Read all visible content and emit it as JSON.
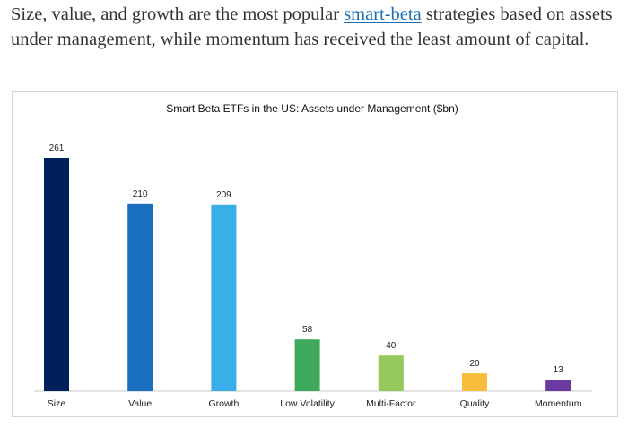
{
  "article": {
    "text_before": "Size, value, and growth are the most popular ",
    "link_text": "smart-beta",
    "text_after": " strategies based on assets under management, while momentum has received the least amount of capital."
  },
  "chart_data": {
    "type": "bar",
    "title": "Smart Beta ETFs in the US: Assets under Management ($bn)",
    "categories": [
      "Size",
      "Value",
      "Growth",
      "Low Volatility",
      "Multi-Factor",
      "Quality",
      "Momentum"
    ],
    "values": [
      261,
      210,
      209,
      58,
      40,
      20,
      13
    ],
    "colors": [
      "#00205b",
      "#1b6fc0",
      "#3aaee8",
      "#3fa95b",
      "#96c95c",
      "#f6be3c",
      "#6a3aa0"
    ],
    "ylim": [
      0,
      261
    ],
    "xlabel": "",
    "ylabel": "",
    "grid": false,
    "legend": "none"
  }
}
